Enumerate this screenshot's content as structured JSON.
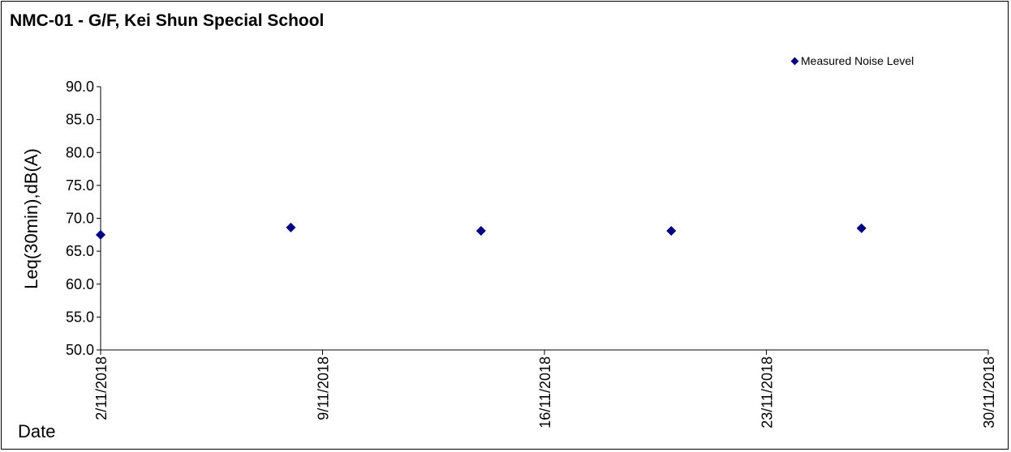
{
  "chart_data": {
    "type": "scatter",
    "title": "NMC-01 - G/F, Kei Shun Special School",
    "xlabel": "Date",
    "ylabel": "Leq(30min),dB(A)",
    "x_tick_labels": [
      "2/11/2018",
      "9/11/2018",
      "16/11/2018",
      "23/11/2018",
      "30/11/2018"
    ],
    "xlim": [
      "2018-11-02",
      "2018-11-30"
    ],
    "ylim": [
      50.0,
      90.0
    ],
    "y_tick_labels": [
      "50.0",
      "55.0",
      "60.0",
      "65.0",
      "70.0",
      "75.0",
      "80.0",
      "85.0",
      "90.0"
    ],
    "grid": false,
    "legend_position": "top-right",
    "series": [
      {
        "name": "Measured Noise Level",
        "color": "#000080",
        "marker": "diamond",
        "points": [
          {
            "x": "2018-11-02",
            "y": 67.5
          },
          {
            "x": "2018-11-08",
            "y": 68.6
          },
          {
            "x": "2018-11-14",
            "y": 68.1
          },
          {
            "x": "2018-11-20",
            "y": 68.1
          },
          {
            "x": "2018-11-26",
            "y": 68.5
          }
        ]
      }
    ]
  }
}
